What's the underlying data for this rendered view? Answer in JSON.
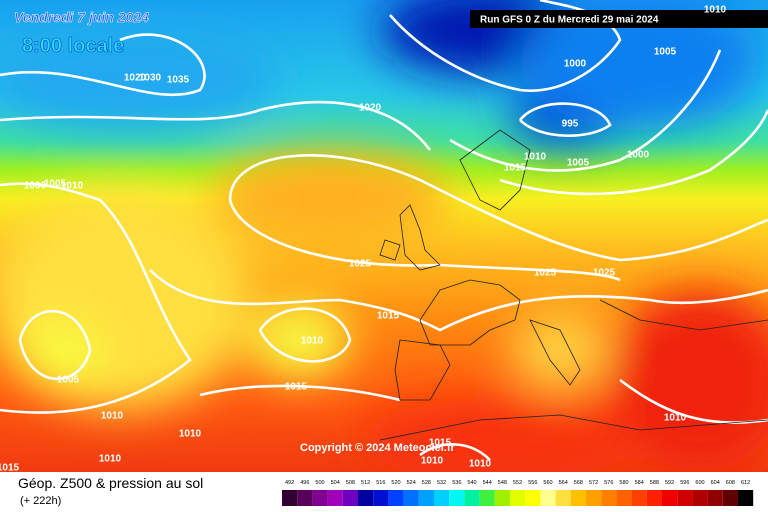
{
  "header": {
    "date": "Vendredi 7 juin 2024",
    "time": "8:00 locale",
    "run": "Run GFS 0 Z du Mercredi 29 mai 2024"
  },
  "copyright": "Copyright © 2024 Meteociel.fr",
  "footer": {
    "title": "Géop. Z500 & pression au sol",
    "lead": "(+ 222h)"
  },
  "scale": {
    "labels": [
      492,
      496,
      500,
      504,
      508,
      512,
      516,
      520,
      524,
      528,
      532,
      536,
      540,
      544,
      548,
      552,
      556,
      560,
      564,
      568,
      572,
      576,
      580,
      584,
      588,
      592,
      596,
      600,
      604,
      608,
      612
    ],
    "colors": [
      "#300030",
      "#58005a",
      "#800090",
      "#a000b8",
      "#7000c0",
      "#0000a0",
      "#0010d0",
      "#0040ff",
      "#0070ff",
      "#00a0ff",
      "#00d0ff",
      "#00f8f0",
      "#00f0a0",
      "#40f040",
      "#a0f000",
      "#e0ff00",
      "#ffff00",
      "#ffff90",
      "#ffe040",
      "#ffc000",
      "#ffa000",
      "#ff8000",
      "#ff6000",
      "#ff4000",
      "#ff2000",
      "#f00000",
      "#d00000",
      "#b00000",
      "#900000",
      "#600000",
      "#000000"
    ]
  },
  "isobars": [
    "1020",
    "1030",
    "1035",
    "1000",
    "1005",
    "1010",
    "1020",
    "1000",
    "995",
    "1005",
    "1010",
    "1015",
    "1000",
    "1005",
    "1010",
    "1025",
    "1025",
    "1025",
    "1015",
    "1010",
    "1005",
    "1015",
    "1010",
    "1010",
    "1010",
    "1015",
    "1010",
    "1010",
    "1010",
    "1015"
  ]
}
